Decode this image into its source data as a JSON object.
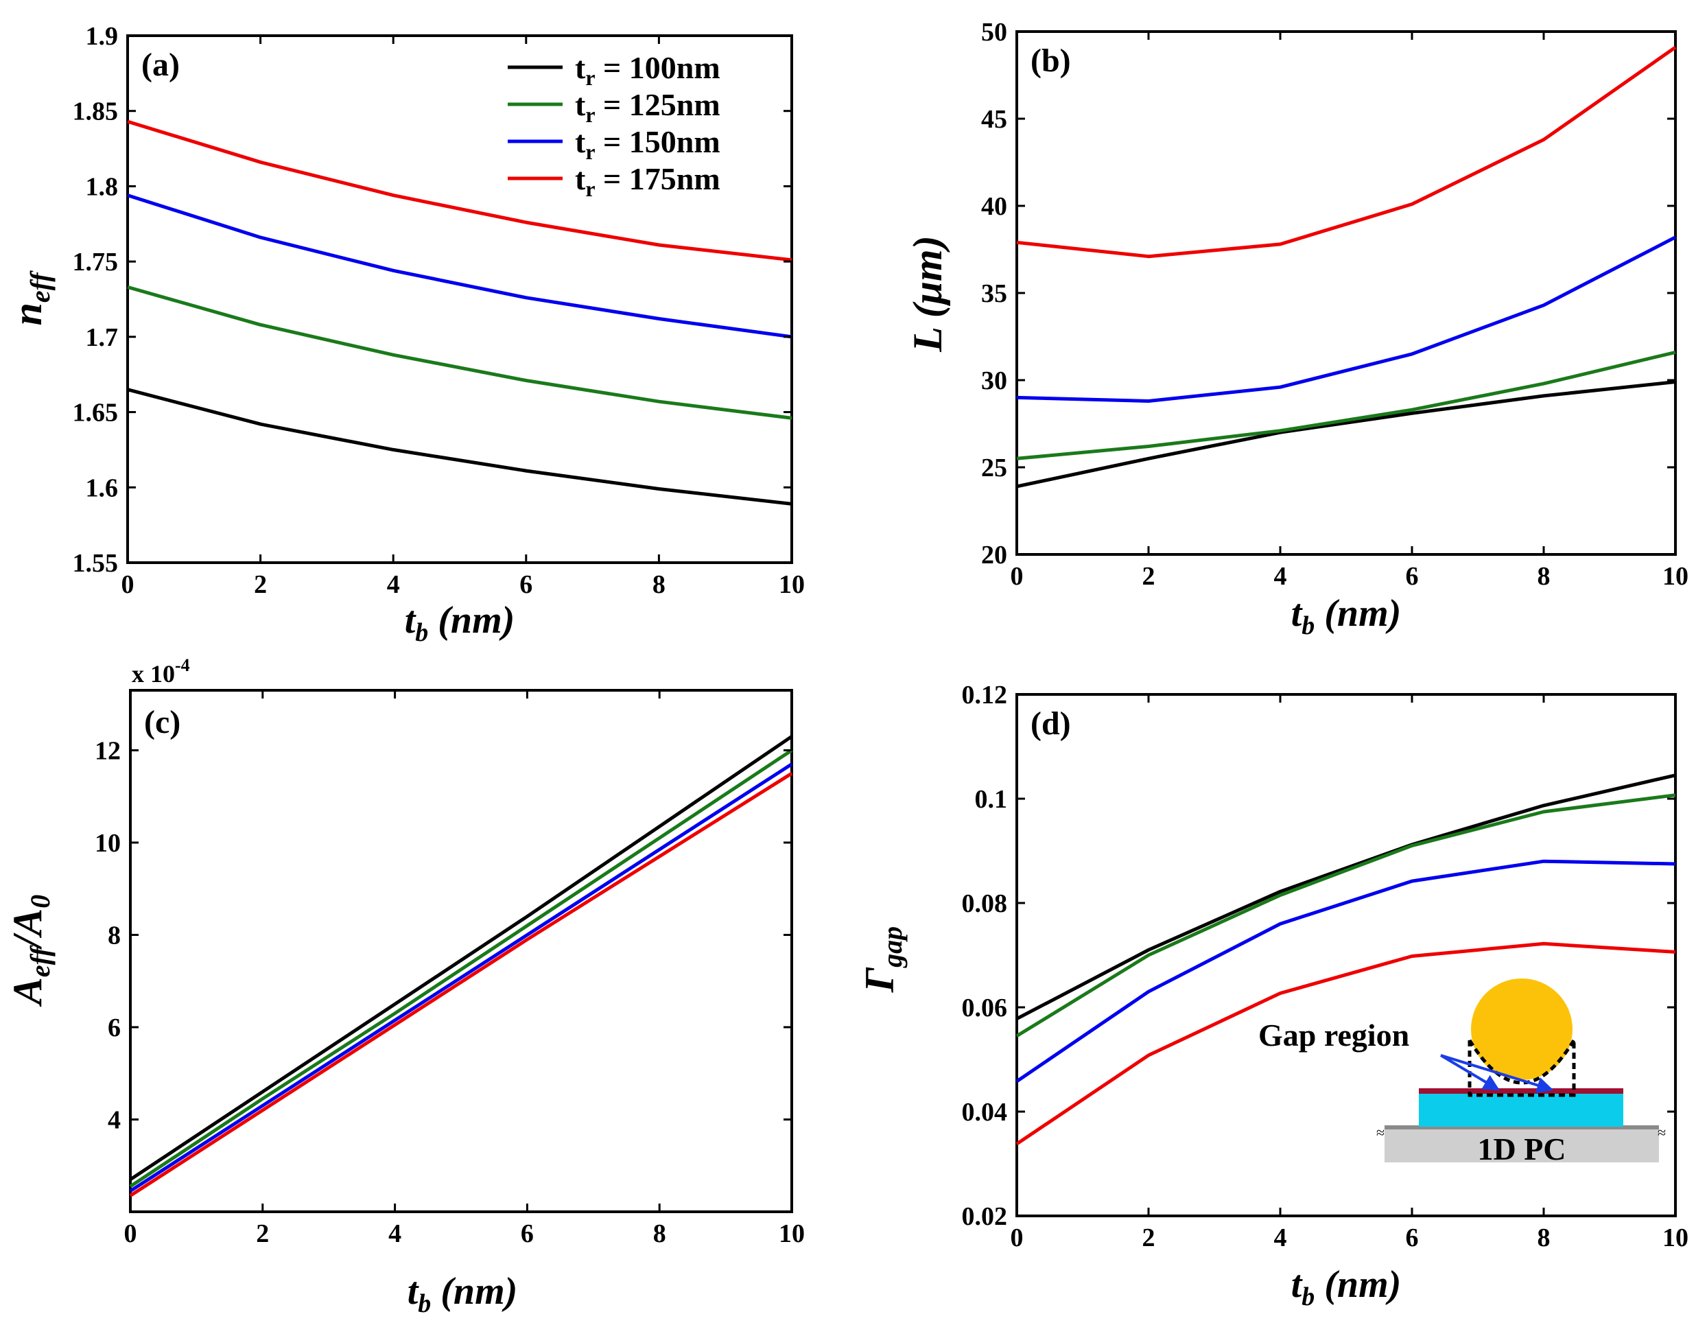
{
  "chart_data": [
    {
      "type": "line",
      "panel_label": "(a)",
      "xlabel_main": "t",
      "xlabel_sub": "b",
      "xlabel_unit": " (nm)",
      "ylabel_main": "n",
      "ylabel_sub": "eff",
      "xlim": [
        0,
        10
      ],
      "ylim": [
        1.55,
        1.9
      ],
      "xticks": [
        "0",
        "2",
        "4",
        "6",
        "8",
        "10"
      ],
      "yticks": [
        "1.55",
        "1.6",
        "1.65",
        "1.7",
        "1.75",
        "1.8",
        "1.85",
        "1.9"
      ],
      "legend": [
        {
          "prefix": "t",
          "sub": "r",
          "text": " = 100nm",
          "color": "#000000"
        },
        {
          "prefix": "t",
          "sub": "r",
          "text": " = 125nm",
          "color": "#1a7a1a"
        },
        {
          "prefix": "t",
          "sub": "r",
          "text": " = 150nm",
          "color": "#0000ee"
        },
        {
          "prefix": "t",
          "sub": "r",
          "text": " = 175nm",
          "color": "#ee0000"
        }
      ],
      "x": [
        0,
        2,
        4,
        6,
        8,
        10
      ],
      "series": [
        {
          "name": "t_r = 100nm",
          "color": "#000000",
          "values": [
            1.665,
            1.642,
            1.625,
            1.611,
            1.599,
            1.589
          ]
        },
        {
          "name": "t_r = 125nm",
          "color": "#1a7a1a",
          "values": [
            1.733,
            1.708,
            1.688,
            1.671,
            1.657,
            1.646
          ]
        },
        {
          "name": "t_r = 150nm",
          "color": "#0000ee",
          "values": [
            1.794,
            1.766,
            1.744,
            1.726,
            1.712,
            1.7
          ]
        },
        {
          "name": "t_r = 175nm",
          "color": "#ee0000",
          "values": [
            1.843,
            1.816,
            1.794,
            1.776,
            1.761,
            1.751
          ]
        }
      ]
    },
    {
      "type": "line",
      "panel_label": "(b)",
      "xlabel_main": "t",
      "xlabel_sub": "b",
      "xlabel_unit": " (nm)",
      "ylabel_main": "L (μm)",
      "xlim": [
        0,
        10
      ],
      "ylim": [
        20,
        50
      ],
      "xticks": [
        "0",
        "2",
        "4",
        "6",
        "8",
        "10"
      ],
      "yticks": [
        "20",
        "25",
        "30",
        "35",
        "40",
        "45",
        "50"
      ],
      "x": [
        0,
        2,
        4,
        6,
        8,
        10
      ],
      "series": [
        {
          "name": "t_r = 100nm",
          "color": "#000000",
          "values": [
            23.9,
            25.5,
            27.0,
            28.1,
            29.1,
            29.9
          ]
        },
        {
          "name": "t_r = 125nm",
          "color": "#1a7a1a",
          "values": [
            25.5,
            26.2,
            27.1,
            28.3,
            29.8,
            31.6
          ]
        },
        {
          "name": "t_r = 150nm",
          "color": "#0000ee",
          "values": [
            29.0,
            28.8,
            29.6,
            31.5,
            34.3,
            38.2
          ]
        },
        {
          "name": "t_r = 175nm",
          "color": "#ee0000",
          "values": [
            37.9,
            37.1,
            37.8,
            40.1,
            43.8,
            49.1
          ]
        }
      ]
    },
    {
      "type": "line",
      "panel_label": "(c)",
      "xlabel_main": "t",
      "xlabel_sub": "b",
      "xlabel_unit": " (nm)",
      "ylabel_main": "A",
      "ylabel_sub": "eff",
      "ylabel_mid": "/A",
      "ylabel_sub2": "0",
      "exponent_base": "x 10",
      "exponent_power": "-4",
      "xlim": [
        0,
        10
      ],
      "ylim": [
        2,
        13.3
      ],
      "xticks": [
        "0",
        "2",
        "4",
        "6",
        "8",
        "10"
      ],
      "yticks": [
        "4",
        "6",
        "8",
        "10",
        "12"
      ],
      "ytick_values": [
        4,
        6,
        8,
        10,
        12
      ],
      "x": [
        0,
        2,
        4,
        6,
        8,
        10
      ],
      "series": [
        {
          "name": "t_r = 100nm",
          "color": "#000000",
          "values": [
            2.7,
            4.6,
            6.5,
            8.4,
            10.35,
            12.3
          ]
        },
        {
          "name": "t_r = 125nm",
          "color": "#1a7a1a",
          "values": [
            2.55,
            4.45,
            6.3,
            8.2,
            10.1,
            12.0
          ]
        },
        {
          "name": "t_r = 150nm",
          "color": "#0000ee",
          "values": [
            2.45,
            4.3,
            6.15,
            8.0,
            9.85,
            11.7
          ]
        },
        {
          "name": "t_r = 175nm",
          "color": "#ee0000",
          "values": [
            2.35,
            4.2,
            6.05,
            7.9,
            9.7,
            11.5
          ]
        }
      ]
    },
    {
      "type": "line",
      "panel_label": "(d)",
      "xlabel_main": "t",
      "xlabel_sub": "b",
      "xlabel_unit": " (nm)",
      "ylabel_main": "Γ",
      "ylabel_sub": "gap",
      "xlim": [
        0,
        10
      ],
      "ylim": [
        0.02,
        0.12
      ],
      "xticks": [
        "0",
        "2",
        "4",
        "6",
        "8",
        "10"
      ],
      "yticks": [
        "0.02",
        "0.04",
        "0.06",
        "0.08",
        "0.1",
        "0.12"
      ],
      "x": [
        0,
        2,
        4,
        6,
        8,
        10
      ],
      "series": [
        {
          "name": "t_r = 100nm",
          "color": "#000000",
          "values": [
            0.0578,
            0.071,
            0.0822,
            0.0912,
            0.0987,
            0.1045
          ]
        },
        {
          "name": "t_r = 125nm",
          "color": "#1a7a1a",
          "values": [
            0.0545,
            0.07,
            0.0815,
            0.091,
            0.0975,
            0.1007
          ]
        },
        {
          "name": "t_r = 150nm",
          "color": "#0000ee",
          "values": [
            0.0458,
            0.063,
            0.076,
            0.0842,
            0.088,
            0.0875
          ]
        },
        {
          "name": "t_r = 175nm",
          "color": "#ee0000",
          "values": [
            0.0338,
            0.0508,
            0.0627,
            0.0698,
            0.0722,
            0.0706
          ]
        }
      ],
      "inset": {
        "gap_label": "Gap region",
        "substrate_label": "1D PC",
        "sphere_color": "#fcc20a",
        "layer_color": "#0bcdeb",
        "strip_color": "#a01030",
        "arrow_color": "#1a3ee6"
      }
    }
  ]
}
